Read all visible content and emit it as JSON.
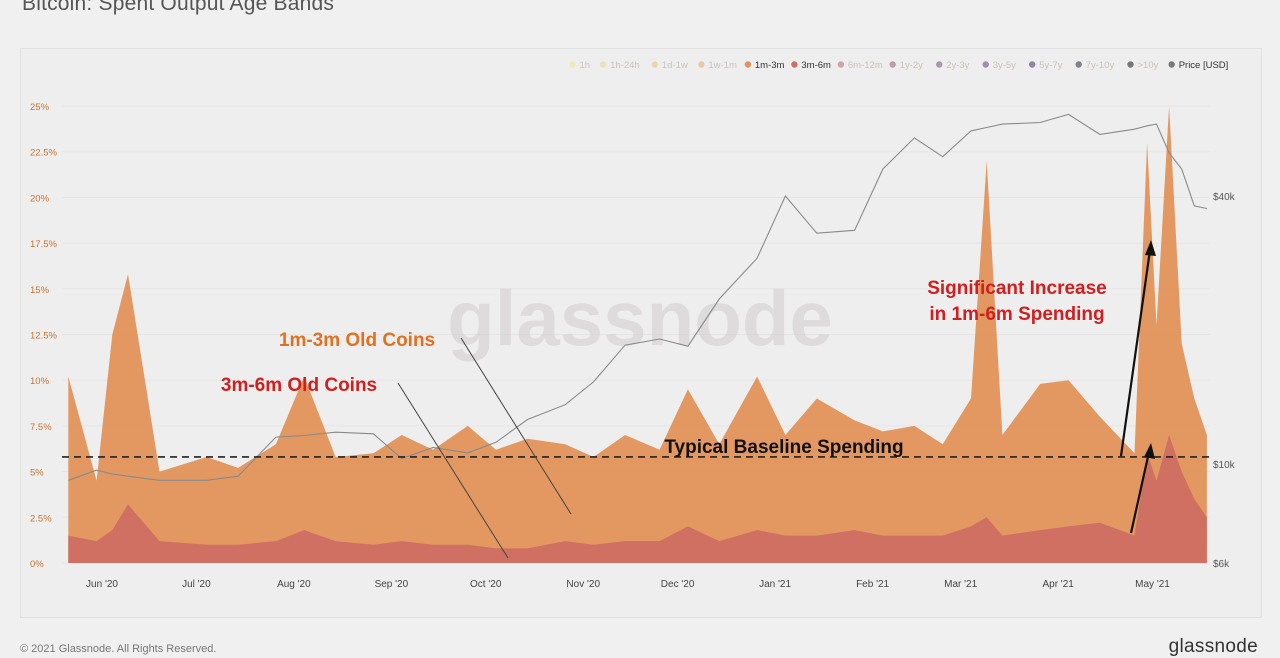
{
  "header": {
    "title": "Bitcoin: Spent Output Age Bands"
  },
  "footer": {
    "copyright": "© 2021 Glassnode. All Rights Reserved.",
    "brand": "glassnode"
  },
  "watermark": "glassnode",
  "colors": {
    "band_1m_3m": "#e2925a",
    "band_3m_6m": "#cf6e63",
    "price_line": "#8a8a8a",
    "annotation_orange": "#e1711f",
    "annotation_red": "#d21e1e",
    "baseline": "#222222"
  },
  "legend": [
    {
      "label": "1h",
      "color": "#f1e28f",
      "active": false
    },
    {
      "label": "1h-24h",
      "color": "#ecd27c",
      "active": false
    },
    {
      "label": "1d-1w",
      "color": "#e9bc6e",
      "active": false
    },
    {
      "label": "1w-1m",
      "color": "#e6a25e",
      "active": false
    },
    {
      "label": "1m-3m",
      "color": "#e2925a",
      "active": true
    },
    {
      "label": "3m-6m",
      "color": "#cf6e63",
      "active": true
    },
    {
      "label": "6m-12m",
      "color": "#b05862",
      "active": false
    },
    {
      "label": "1y-2y",
      "color": "#8c4c6a",
      "active": false
    },
    {
      "label": "2y-3y",
      "color": "#6b3a78",
      "active": false
    },
    {
      "label": "3y-5y",
      "color": "#4f2b78",
      "active": false
    },
    {
      "label": "5y-7y",
      "color": "#2d1a5c",
      "active": false
    },
    {
      "label": "7y-10y",
      "color": "#151034",
      "active": false
    },
    {
      "label": ">10y",
      "color": "#000000",
      "active": false
    },
    {
      "label": "Price [USD]",
      "color": "#7a7a7a",
      "active": true
    }
  ],
  "annotations": {
    "label_1m_3m": "1m-3m Old Coins",
    "label_3m_6m": "3m-6m Old Coins",
    "baseline_label": "Typical Baseline Spending",
    "increase_line1": "Significant Increase",
    "increase_line2": "in 1m-6m Spending"
  },
  "chart_data": {
    "type": "area",
    "title": "Bitcoin: Spent Output Age Bands",
    "x_tick_labels": [
      "Jun '20",
      "Jul '20",
      "Aug '20",
      "Sep '20",
      "Oct '20",
      "Nov '20",
      "Dec '20",
      "Jan '21",
      "Feb '21",
      "Mar '21",
      "Apr '21",
      "May '21"
    ],
    "y_left": {
      "ticks": [
        "0%",
        "2.5%",
        "5%",
        "7.5%",
        "10%",
        "12.5%",
        "15%",
        "17.5%",
        "20%",
        "22.5%",
        "25%"
      ],
      "range": [
        0,
        25
      ]
    },
    "y_right": {
      "ticks": [
        "$6k",
        "$10k",
        "$40k"
      ],
      "scale": "log"
    },
    "baseline_pct": 5.8,
    "x_dates": [
      "2020-05-27",
      "2020-06-05",
      "2020-06-10",
      "2020-06-15",
      "2020-06-25",
      "2020-07-10",
      "2020-07-20",
      "2020-08-01",
      "2020-08-10",
      "2020-08-20",
      "2020-09-01",
      "2020-09-10",
      "2020-09-20",
      "2020-10-01",
      "2020-10-10",
      "2020-10-20",
      "2020-11-01",
      "2020-11-10",
      "2020-11-20",
      "2020-12-01",
      "2020-12-10",
      "2020-12-20",
      "2021-01-01",
      "2021-01-10",
      "2021-01-20",
      "2021-02-01",
      "2021-02-10",
      "2021-02-20",
      "2021-03-01",
      "2021-03-10",
      "2021-03-15",
      "2021-03-20",
      "2021-04-01",
      "2021-04-10",
      "2021-04-20",
      "2021-05-01",
      "2021-05-05",
      "2021-05-08",
      "2021-05-12",
      "2021-05-16",
      "2021-05-20",
      "2021-05-24"
    ],
    "series": [
      {
        "name": "1m-3m",
        "values": [
          10.2,
          4.5,
          12.5,
          15.8,
          5.0,
          5.8,
          5.2,
          6.5,
          10.2,
          5.8,
          6.0,
          7.0,
          6.2,
          7.5,
          6.2,
          6.8,
          6.5,
          5.8,
          7.0,
          6.2,
          9.5,
          6.5,
          10.2,
          7.0,
          9.0,
          7.8,
          7.2,
          7.5,
          6.5,
          9.0,
          22.0,
          7.0,
          9.8,
          10.0,
          8.0,
          6.0,
          23.0,
          13.0,
          25.0,
          12.0,
          9.0,
          7.0
        ]
      },
      {
        "name": "3m-6m",
        "values": [
          1.5,
          1.2,
          1.8,
          3.2,
          1.2,
          1.0,
          1.0,
          1.2,
          1.8,
          1.2,
          1.0,
          1.2,
          1.0,
          1.0,
          0.8,
          0.8,
          1.2,
          1.0,
          1.2,
          1.2,
          2.0,
          1.2,
          1.8,
          1.5,
          1.5,
          1.8,
          1.5,
          1.5,
          1.5,
          2.0,
          2.5,
          1.5,
          1.8,
          2.0,
          2.2,
          1.5,
          6.0,
          4.5,
          7.0,
          5.0,
          3.5,
          2.5
        ]
      },
      {
        "name": "Price [USD]",
        "values": [
          9200,
          9700,
          9500,
          9400,
          9200,
          9200,
          9400,
          11500,
          11600,
          11800,
          11700,
          10300,
          10900,
          10600,
          11200,
          12600,
          13600,
          15300,
          18500,
          19100,
          18400,
          23500,
          29000,
          40000,
          33000,
          33500,
          46000,
          54000,
          49000,
          56000,
          57000,
          58000,
          58500,
          61000,
          55000,
          56500,
          57500,
          58000,
          50000,
          46000,
          38000,
          37500
        ]
      }
    ]
  }
}
